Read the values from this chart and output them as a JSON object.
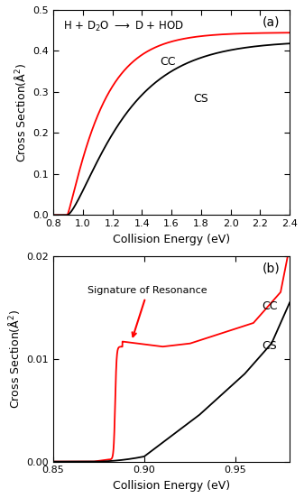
{
  "title_a": "(a)",
  "title_b": "(b)",
  "xlabel": "Collision Energy (eV)",
  "ylabel": "Cross Section(Å$^2$)",
  "xlim_a": [
    0.8,
    2.4
  ],
  "ylim_a": [
    0.0,
    0.5
  ],
  "xlim_b": [
    0.85,
    0.98
  ],
  "ylim_b": [
    0.0,
    0.02
  ],
  "xticks_a": [
    0.8,
    1.0,
    1.2,
    1.4,
    1.6,
    1.8,
    2.0,
    2.2,
    2.4
  ],
  "yticks_a": [
    0.0,
    0.1,
    0.2,
    0.3,
    0.4,
    0.5
  ],
  "xticks_b": [
    0.85,
    0.9,
    0.95
  ],
  "yticks_b": [
    0.0,
    0.01,
    0.02
  ],
  "cc_color": "#ff0000",
  "cs_color": "#000000",
  "annotation_text": "Signature of Resonance",
  "arrow_color": "#ff0000"
}
